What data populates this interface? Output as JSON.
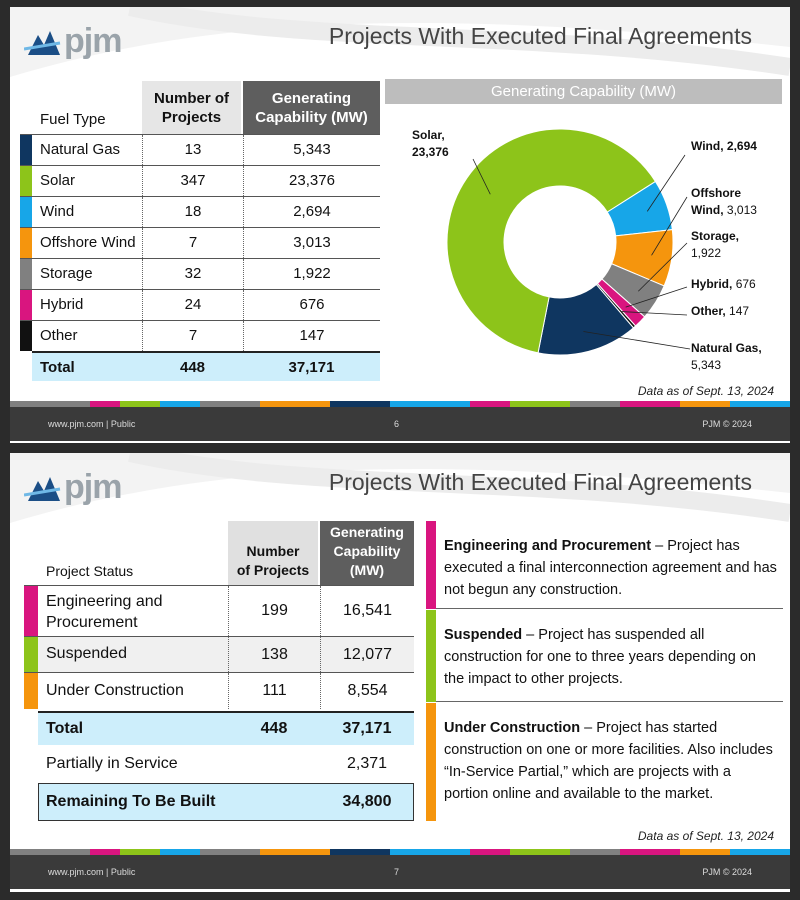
{
  "logo_text": "pjm",
  "footer": {
    "left": "www.pjm.com | Public",
    "right": "PJM © 2024"
  },
  "colors": {
    "natural_gas": "#0f3660",
    "solar": "#8dc41a",
    "wind": "#17a6e8",
    "offshore_wind": "#f5950d",
    "storage": "#808080",
    "hybrid": "#d9157f",
    "other": "#111111",
    "total_bg": "#cdeefb"
  },
  "slide1": {
    "title": "Projects With Executed Final Agreements",
    "page": "6",
    "data_as_of": "Data as of Sept. 13, 2024",
    "table": {
      "col_fuel": "Fuel Type",
      "col_num_1": "Number of",
      "col_num_2": "Projects",
      "col_cap_1": "Generating",
      "col_cap_2": "Capability (MW)",
      "rows": [
        {
          "name": "Natural Gas",
          "count": "13",
          "cap": "5,343"
        },
        {
          "name": "Solar",
          "count": "347",
          "cap": "23,376"
        },
        {
          "name": "Wind",
          "count": "18",
          "cap": "2,694"
        },
        {
          "name": "Offshore Wind",
          "count": "7",
          "cap": "3,013"
        },
        {
          "name": "Storage",
          "count": "32",
          "cap": "1,922"
        },
        {
          "name": "Hybrid",
          "count": "24",
          "cap": "676"
        },
        {
          "name": "Other",
          "count": "7",
          "cap": "147"
        }
      ],
      "total": {
        "name": "Total",
        "count": "448",
        "cap": "37,171"
      }
    },
    "chart_header": "Generating Capability (MW)"
  },
  "chart_data": {
    "type": "pie",
    "title": "Generating Capability (MW)",
    "categories": [
      "Natural Gas",
      "Solar",
      "Wind",
      "Offshore Wind",
      "Storage",
      "Hybrid",
      "Other"
    ],
    "values": [
      5343,
      23376,
      2694,
      3013,
      1922,
      676,
      147
    ],
    "donut": true,
    "labels": {
      "solar": {
        "name": "Solar,",
        "value": "23,376"
      },
      "wind": {
        "name": "Wind,",
        "value": "2,694"
      },
      "offshore_wind": {
        "name1": "Offshore",
        "name2": "Wind,",
        "value": "3,013"
      },
      "storage": {
        "name": "Storage,",
        "value": "1,922"
      },
      "hybrid": {
        "name": "Hybrid,",
        "value": "676"
      },
      "other": {
        "name": "Other,",
        "value": "147"
      },
      "natural_gas": {
        "name": "Natural Gas,",
        "value": "5,343"
      }
    }
  },
  "slide2": {
    "title": "Projects With Executed Final Agreements",
    "page": "7",
    "data_as_of": "Data as of Sept. 13, 2024",
    "table": {
      "col_status": "Project Status",
      "col_num_1": "Number",
      "col_num_2": "of Projects",
      "col_cap_1": "Generating",
      "col_cap_2": "Capability",
      "col_cap_3": "(MW)",
      "rows": [
        {
          "name1": "Engineering and",
          "name2": "Procurement",
          "count": "199",
          "cap": "16,541"
        },
        {
          "name1": "Suspended",
          "name2": "",
          "count": "138",
          "cap": "12,077"
        },
        {
          "name1": "Under Construction",
          "name2": "",
          "count": "111",
          "cap": "8,554"
        }
      ],
      "total": {
        "name": "Total",
        "count": "448",
        "cap": "37,171"
      },
      "partial": {
        "name": "Partially in Service",
        "cap": "2,371"
      },
      "remaining": {
        "name": "Remaining To Be Built",
        "cap": "34,800"
      }
    },
    "definitions": [
      {
        "term": "Engineering and Procurement",
        "text": " – Project has executed a final interconnection agreement and has not begun any construction."
      },
      {
        "term": "Suspended",
        "text": " – Project has suspended all construction for one to three years depending on the impact to other projects."
      },
      {
        "term": "Under Construction",
        "text": " – Project has started construction on one or more facilities. Also includes “In-Service Partial,” which are projects with a portion online and available to the market."
      }
    ]
  }
}
